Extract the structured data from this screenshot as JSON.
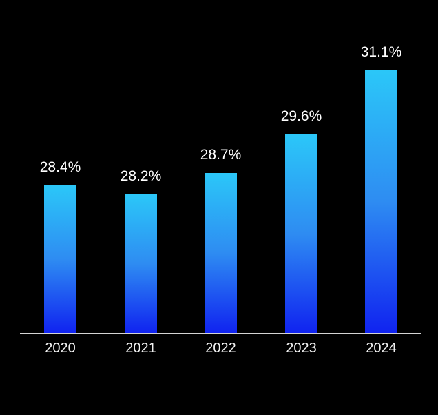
{
  "chart_data": {
    "type": "bar",
    "categories": [
      "2020",
      "2021",
      "2022",
      "2023",
      "2024"
    ],
    "values": [
      28.4,
      28.2,
      28.7,
      29.6,
      31.1
    ],
    "value_labels": [
      "28.4%",
      "28.2%",
      "28.7%",
      "29.6%",
      "31.1%"
    ],
    "title": "",
    "xlabel": "",
    "ylabel": "",
    "ylim": [
      25,
      32
    ],
    "grid": false,
    "legend": "none",
    "data_labels_position": "above-bars"
  },
  "colors": {
    "background": "#000000",
    "bar_gradient_top": "#2BC7F8",
    "bar_gradient_mid": "#2E8CF2",
    "bar_gradient_bottom": "#1023F0",
    "axis_line": "#D4D4D4",
    "value_label": "#FFFFFF",
    "year_label": "#F0F0F0"
  }
}
